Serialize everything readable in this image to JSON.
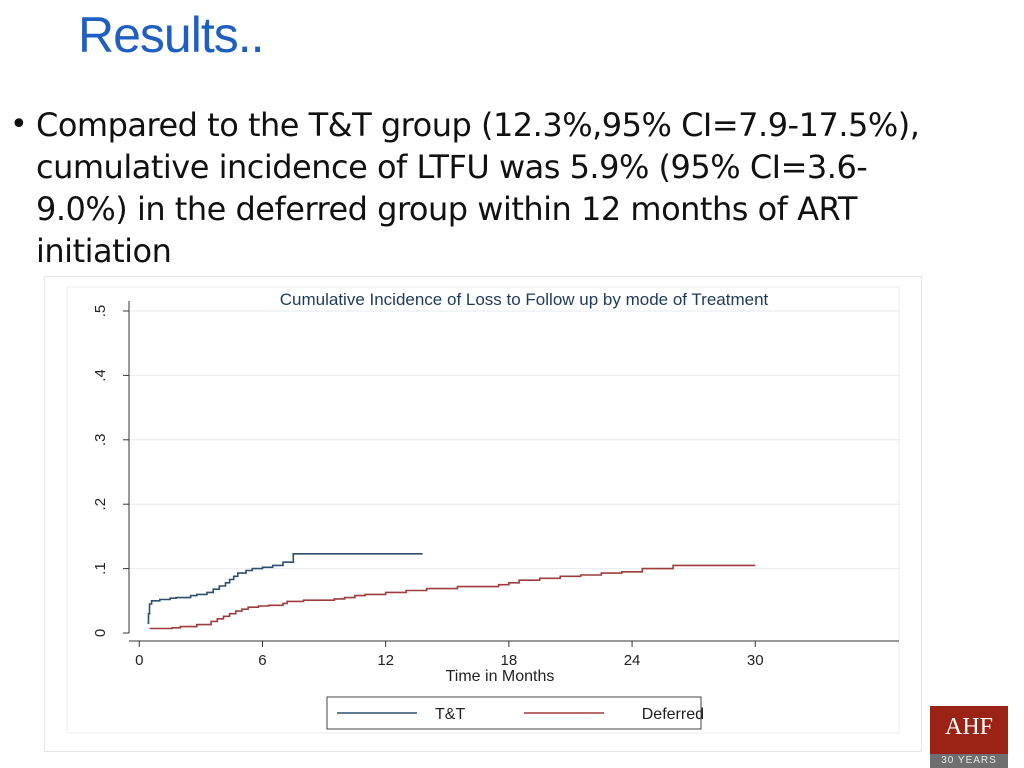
{
  "slide": {
    "title": "Results..",
    "bullet_symbol": "•",
    "bullet_text": "Compared to the T&T group (12.3%,95%  CI=7.9-17.5%), cumulative incidence of LTFU was 5.9% (95% CI=3.6- 9.0%) in the deferred group within 12 months of ART initiation"
  },
  "logo": {
    "text": "AHF",
    "band_text": "30 YEARS",
    "color": "#9a2316"
  },
  "chart_data": {
    "type": "line",
    "title": "Cumulative Incidence of Loss to Follow up by mode of Treatment",
    "xlabel": "Time in Months",
    "ylabel": "",
    "xlim": [
      -0.5,
      37
    ],
    "ylim": [
      0,
      0.5
    ],
    "x_ticks": [
      0,
      6,
      12,
      18,
      24,
      30
    ],
    "x_tick_labels": [
      "0",
      "6",
      "12",
      "18",
      "24",
      "30"
    ],
    "y_ticks": [
      0,
      0.1,
      0.2,
      0.3,
      0.4,
      0.5
    ],
    "y_tick_labels": [
      "0",
      ".1",
      ".2",
      ".3",
      ".4",
      ".5"
    ],
    "grid": true,
    "legend_position": "bottom",
    "series": [
      {
        "name": "T&T",
        "color": "#2c4f6b",
        "step": true,
        "x": [
          0.4,
          0.45,
          0.5,
          0.6,
          1.0,
          1.5,
          1.8,
          2.5,
          2.8,
          3.3,
          3.6,
          3.9,
          4.2,
          4.4,
          4.6,
          4.8,
          5.2,
          5.5,
          6.0,
          6.5,
          7.0,
          7.5,
          13.8
        ],
        "y": [
          0.015,
          0.03,
          0.045,
          0.05,
          0.052,
          0.054,
          0.055,
          0.058,
          0.06,
          0.063,
          0.068,
          0.073,
          0.078,
          0.083,
          0.088,
          0.093,
          0.097,
          0.1,
          0.102,
          0.105,
          0.11,
          0.123,
          0.123
        ]
      },
      {
        "name": "Deferred",
        "color": "#9e3b3b",
        "step": true,
        "x": [
          0.5,
          1.0,
          1.6,
          2.0,
          2.8,
          3.5,
          3.8,
          4.1,
          4.4,
          4.7,
          5.0,
          5.3,
          5.8,
          6.3,
          7.0,
          7.2,
          8.0,
          9.5,
          10.0,
          10.5,
          11.0,
          12.0,
          13.0,
          14.0,
          15.5,
          17.5,
          18.0,
          18.5,
          19.5,
          20.5,
          21.5,
          22.5,
          23.5,
          24.5,
          26.0,
          30.0
        ],
        "y": [
          0.007,
          0.007,
          0.008,
          0.01,
          0.013,
          0.018,
          0.022,
          0.026,
          0.03,
          0.034,
          0.037,
          0.04,
          0.042,
          0.043,
          0.046,
          0.049,
          0.051,
          0.053,
          0.055,
          0.058,
          0.06,
          0.063,
          0.066,
          0.069,
          0.072,
          0.075,
          0.078,
          0.082,
          0.085,
          0.088,
          0.09,
          0.093,
          0.095,
          0.1,
          0.105,
          0.105
        ]
      }
    ]
  }
}
